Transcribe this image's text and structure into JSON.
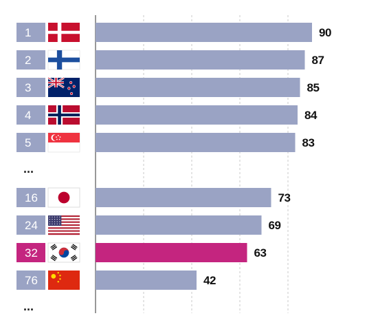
{
  "chart_data": {
    "type": "bar",
    "orientation": "horizontal",
    "xlim": [
      0,
      100
    ],
    "grid": true,
    "rows": [
      {
        "rank": "1",
        "value": 90,
        "flag_icon": "denmark-flag-icon",
        "highlight": false
      },
      {
        "rank": "2",
        "value": 87,
        "flag_icon": "finland-flag-icon",
        "highlight": false
      },
      {
        "rank": "3",
        "value": 85,
        "flag_icon": "new-zealand-flag-icon",
        "highlight": false
      },
      {
        "rank": "4",
        "value": 84,
        "flag_icon": "norway-flag-icon",
        "highlight": false
      },
      {
        "rank": "5",
        "value": 83,
        "flag_icon": "singapore-flag-icon",
        "highlight": false
      },
      {
        "ellipsis": "..."
      },
      {
        "rank": "16",
        "value": 73,
        "flag_icon": "japan-flag-icon",
        "highlight": false
      },
      {
        "rank": "24",
        "value": 69,
        "flag_icon": "usa-flag-icon",
        "highlight": false
      },
      {
        "rank": "32",
        "value": 63,
        "flag_icon": "south-korea-flag-icon",
        "highlight": true
      },
      {
        "rank": "76",
        "value": 42,
        "flag_icon": "china-flag-icon",
        "highlight": false
      },
      {
        "ellipsis": "..."
      }
    ]
  },
  "colors": {
    "bar": "#9aa3c4",
    "highlight": "#c4257f",
    "rank_box": "#9aa3c4",
    "rank_box_highlight": "#c4257f",
    "grid": "#c8c8c8",
    "axis": "#555555"
  }
}
